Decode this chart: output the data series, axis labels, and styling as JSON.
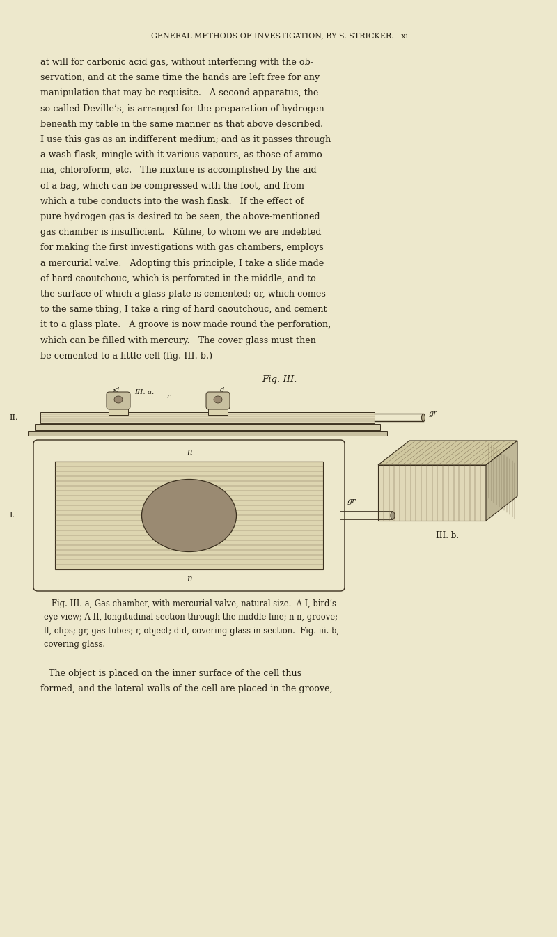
{
  "bg_color": "#ede8cc",
  "page_width": 8.0,
  "page_height": 13.46,
  "header_text": "GENERAL METHODS OF INVESTIGATION, BY S. STRICKER.   xi",
  "paragraph1_lines": [
    "at will for carbonic acid gas, without interfering with the ob-",
    "servation, and at the same time the hands are left free for any",
    "manipulation that may be requisite.   A second apparatus, the",
    "so-called Deville’s, is arranged for the preparation of hydrogen",
    "beneath my table in the same manner as that above described.",
    "I use this gas as an indifferent medium; and as it passes through",
    "a wash flask, mingle with it various vapours, as those of ammo-",
    "nia, chloroform, etc.   The mixture is accomplished by the aid",
    "of a bag, which can be compressed with the foot, and from",
    "which a tube conducts into the wash flask.   If the effect of",
    "pure hydrogen gas is desired to be seen, the above-mentioned",
    "gas chamber is insufficient.   Kühne, to whom we are indebted",
    "for making the first investigations with gas chambers, employs",
    "a mercurial valve.   Adopting this principle, I take a slide made",
    "of hard caoutchouc, which is perforated in the middle, and to",
    "the surface of which a glass plate is cemented; or, which comes",
    "to the same thing, I take a ring of hard caoutchouc, and cement",
    "it to a glass plate.   A groove is now made round the perforation,",
    "which can be filled with mercury.   The cover glass must then",
    "be cemented to a little cell (fig. III. b.)"
  ],
  "fig_caption": "Fig. III.",
  "caption_text_lines": [
    "   Fig. III. a, Gas chamber, with mercurial valve, natural size.  A I, bird’s-",
    "eye-view; A II, longitudinal section through the middle line; n n, groove;",
    "ll, clips; gr, gas tubes; r, object; d d, covering glass in section.  Fig. iii. b,",
    "covering glass."
  ],
  "paragraph2_lines": [
    "   The object is placed on the inner surface of the cell thus",
    "formed, and the lateral walls of the cell are placed in the groove,"
  ],
  "text_color": "#252015",
  "line_color": "#3a2f1e",
  "hatch_color": "#7a6a50",
  "shade_color": "#9a8a72",
  "bg_inner": "#ddd5b0",
  "bg_plate": "#d0c8a0"
}
